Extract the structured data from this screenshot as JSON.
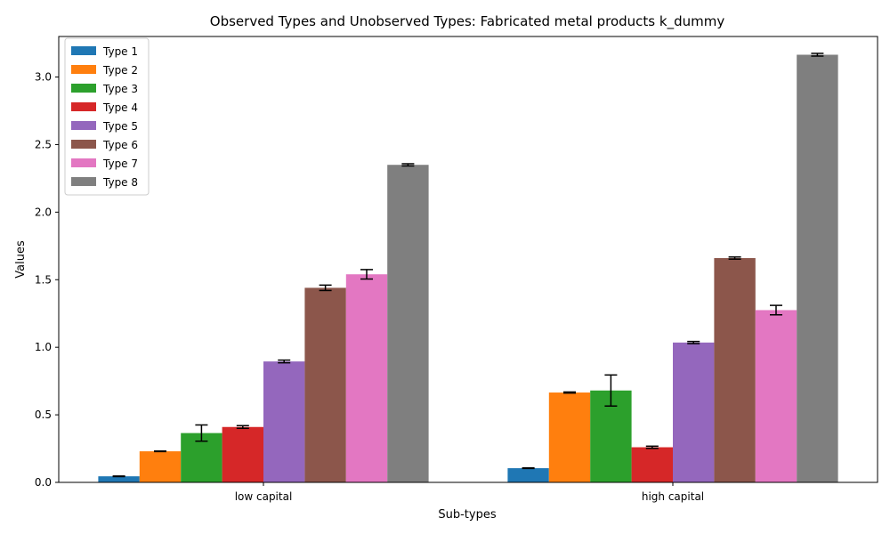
{
  "chart_data": {
    "type": "bar",
    "title": "Observed Types and Unobserved Types: Fabricated metal products k_dummy",
    "xlabel": "Sub-types",
    "ylabel": "Values",
    "ylim": [
      0,
      3.3
    ],
    "yticks": [
      "0.0",
      "0.5",
      "1.0",
      "1.5",
      "2.0",
      "2.5",
      "3.0"
    ],
    "grid": false,
    "legend_position": "top-left",
    "categories": [
      "low capital",
      "high capital"
    ],
    "series": [
      {
        "name": "Type 1",
        "color": "#1f77b4",
        "values": [
          0.045,
          0.105
        ],
        "errors": [
          0.002,
          0.002
        ]
      },
      {
        "name": "Type 2",
        "color": "#ff7f0e",
        "values": [
          0.23,
          0.665
        ],
        "errors": [
          0.002,
          0.004
        ]
      },
      {
        "name": "Type 3",
        "color": "#2ca02c",
        "values": [
          0.365,
          0.68
        ],
        "errors": [
          0.06,
          0.115
        ]
      },
      {
        "name": "Type 4",
        "color": "#d62728",
        "values": [
          0.41,
          0.26
        ],
        "errors": [
          0.01,
          0.008
        ]
      },
      {
        "name": "Type 5",
        "color": "#9467bd",
        "values": [
          0.895,
          1.035
        ],
        "errors": [
          0.01,
          0.008
        ]
      },
      {
        "name": "Type 6",
        "color": "#8c564b",
        "values": [
          1.44,
          1.66
        ],
        "errors": [
          0.02,
          0.008
        ]
      },
      {
        "name": "Type 7",
        "color": "#e377c2",
        "values": [
          1.54,
          1.275
        ],
        "errors": [
          0.035,
          0.035
        ]
      },
      {
        "name": "Type 8",
        "color": "#7f7f7f",
        "values": [
          2.35,
          3.165
        ],
        "errors": [
          0.008,
          0.01
        ]
      }
    ]
  }
}
